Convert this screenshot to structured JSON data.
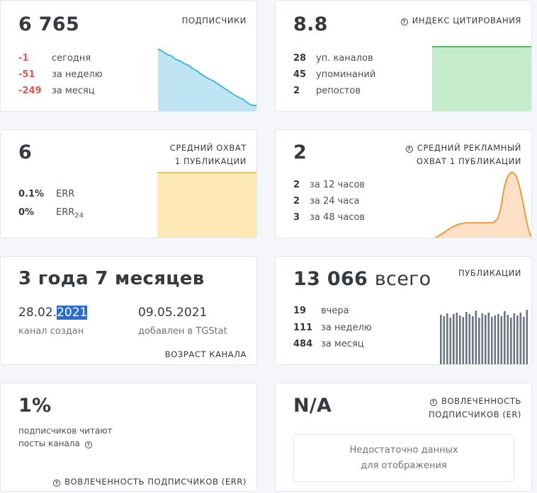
{
  "subscribers": {
    "value": "6 765",
    "label": "подписчики",
    "stats": [
      {
        "n": "-1",
        "t": "сегодня"
      },
      {
        "n": "-51",
        "t": "за неделю"
      },
      {
        "n": "-249",
        "t": "за месяц"
      }
    ],
    "colors": {
      "line": "#3ab0dd",
      "fill": "#bfe4f3"
    }
  },
  "citation": {
    "value": "8.8",
    "label": "индекс цитирования",
    "stats": [
      {
        "n": "28",
        "t": "уп. каналов"
      },
      {
        "n": "45",
        "t": "упоминаний"
      },
      {
        "n": "2",
        "t": "репостов"
      }
    ],
    "colors": {
      "line": "#4cbb60",
      "fill": "#c5ecca"
    }
  },
  "avg_reach": {
    "value": "6",
    "label_line1": "средний охват",
    "label_line2": "1 публикации",
    "stats": [
      {
        "n": "0.1%",
        "t": "ERR"
      },
      {
        "n": "0%",
        "t": "ERR",
        "sub": "24"
      }
    ],
    "colors": {
      "line": "#f4c44c",
      "fill": "#fde8b6"
    }
  },
  "ad_reach": {
    "value": "2",
    "label_line1": "средний рекламный",
    "label_line2": "охват 1 публикации",
    "stats": [
      {
        "n": "2",
        "t": "за 12 часов"
      },
      {
        "n": "2",
        "t": "за 24 часа"
      },
      {
        "n": "3",
        "t": "за 48 часов"
      }
    ],
    "colors": {
      "line": "#f3912b",
      "fill": "#fde0c6"
    }
  },
  "age": {
    "value": "3 года 7 месяцев",
    "created_date_prefix": "28.02.",
    "created_date_selected": "2021",
    "created_label": "канал создан",
    "added_date": "09.05.2021",
    "added_label": "добавлен в TGStat",
    "label": "возраст канала"
  },
  "publications": {
    "value": "13 066",
    "value_suffix": "всего",
    "label": "публикации",
    "stats": [
      {
        "n": "19",
        "t": "вчера"
      },
      {
        "n": "111",
        "t": "за неделю"
      },
      {
        "n": "484",
        "t": "за месяц"
      }
    ],
    "colors": {
      "bar": "#6c7683"
    }
  },
  "err": {
    "value": "1%",
    "desc_line1": "подписчиков читают",
    "desc_line2": "посты канала",
    "label": "вовлеченность подписчиков (ERR)"
  },
  "er": {
    "value": "N/A",
    "label_line1": "вовлеченность",
    "label_line2": "подписчиков (ER)",
    "nodata_line1": "Недостаточно данных",
    "nodata_line2": "для отображения"
  }
}
